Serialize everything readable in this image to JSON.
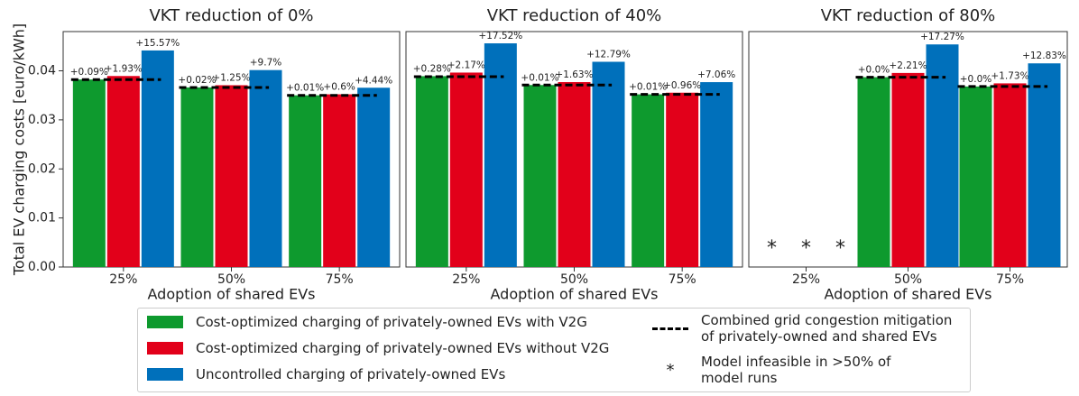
{
  "chart_data": [
    {
      "type": "bar",
      "title": "VKT reduction of 0%",
      "xlabel": "Adoption of shared EVs",
      "ylabel": "Total EV charging costs [euro/kWh]",
      "categories": [
        "25%",
        "50%",
        "75%"
      ],
      "ylim": [
        0,
        0.048
      ],
      "yticks": [
        {
          "value": 0,
          "label": "0.00"
        },
        {
          "value": 0.01,
          "label": "0.01"
        },
        {
          "value": 0.02,
          "label": "0.02"
        },
        {
          "value": 0.03,
          "label": "0.03"
        },
        {
          "value": 0.04,
          "label": "0.04"
        }
      ],
      "series": [
        {
          "name": "Cost-optimized charging of privately-owned EVs with V2G",
          "color": "#0e9a2e",
          "values": [
            0.03823,
            0.03661,
            0.035
          ],
          "value_labels": [
            "+0.09%",
            "+0.02%",
            "+0.01%"
          ]
        },
        {
          "name": "Cost-optimized charging of privately-owned EVs without V2G",
          "color": "#e2001a",
          "values": [
            0.03894,
            0.03706,
            0.03521
          ],
          "value_labels": [
            "+1.93%",
            "+1.25%",
            "+0.6%"
          ]
        },
        {
          "name": "Uncontrolled charging of privately-owned EVs",
          "color": "#0070bb",
          "values": [
            0.04415,
            0.04015,
            0.03655
          ],
          "value_labels": [
            "+15.57%",
            "+9.7%",
            "+4.44%"
          ]
        },
        {
          "name": "Combined grid congestion mitigation of privately-owned and shared EVs",
          "color": "#000000",
          "style": "dashed",
          "values": [
            0.0382,
            0.0366,
            0.035
          ]
        }
      ]
    },
    {
      "type": "bar",
      "title": "VKT reduction of 40%",
      "xlabel": "Adoption of shared EVs",
      "categories": [
        "25%",
        "50%",
        "75%"
      ],
      "ylim": [
        0,
        0.048
      ],
      "series": [
        {
          "name": "Cost-optimized charging of privately-owned EVs with V2G",
          "color": "#0e9a2e",
          "values": [
            0.03891,
            0.0371,
            0.0352
          ],
          "value_labels": [
            "+0.28%",
            "+0.01%",
            "+0.01%"
          ]
        },
        {
          "name": "Cost-optimized charging of privately-owned EVs without V2G",
          "color": "#e2001a",
          "values": [
            0.03964,
            0.0377,
            0.03554
          ],
          "value_labels": [
            "+2.17%",
            "+1.63%",
            "+0.96%"
          ]
        },
        {
          "name": "Uncontrolled charging of privately-owned EVs",
          "color": "#0070bb",
          "values": [
            0.0456,
            0.04184,
            0.03769
          ],
          "value_labels": [
            "+17.52%",
            "+12.79%",
            "+7.06%"
          ]
        },
        {
          "name": "Combined grid congestion mitigation of privately-owned and shared EVs",
          "color": "#000000",
          "style": "dashed",
          "values": [
            0.0388,
            0.0371,
            0.0352
          ]
        }
      ]
    },
    {
      "type": "bar",
      "title": "VKT reduction of 80%",
      "xlabel": "Adoption of shared EVs",
      "categories": [
        "25%",
        "50%",
        "75%"
      ],
      "ylim": [
        0,
        0.048
      ],
      "infeasible_categories": [
        "25%"
      ],
      "series": [
        {
          "name": "Cost-optimized charging of privately-owned EVs with V2G",
          "color": "#0e9a2e",
          "values": [
            null,
            0.0387,
            0.0368
          ],
          "value_labels": [
            null,
            "+0.0%",
            "+0.0%"
          ]
        },
        {
          "name": "Cost-optimized charging of privately-owned EVs without V2G",
          "color": "#e2001a",
          "values": [
            null,
            0.03956,
            0.03744
          ],
          "value_labels": [
            null,
            "+2.21%",
            "+1.73%"
          ]
        },
        {
          "name": "Uncontrolled charging of privately-owned EVs",
          "color": "#0070bb",
          "values": [
            null,
            0.04538,
            0.04152
          ],
          "value_labels": [
            null,
            "+17.27%",
            "+12.83%"
          ]
        },
        {
          "name": "Combined grid congestion mitigation of privately-owned and shared EVs",
          "color": "#000000",
          "style": "dashed",
          "values": [
            null,
            0.0387,
            0.0368
          ]
        }
      ]
    }
  ],
  "legend": {
    "infeasible_symbol": "*",
    "infeasible_label": "Model infeasible in >50% of model runs"
  }
}
